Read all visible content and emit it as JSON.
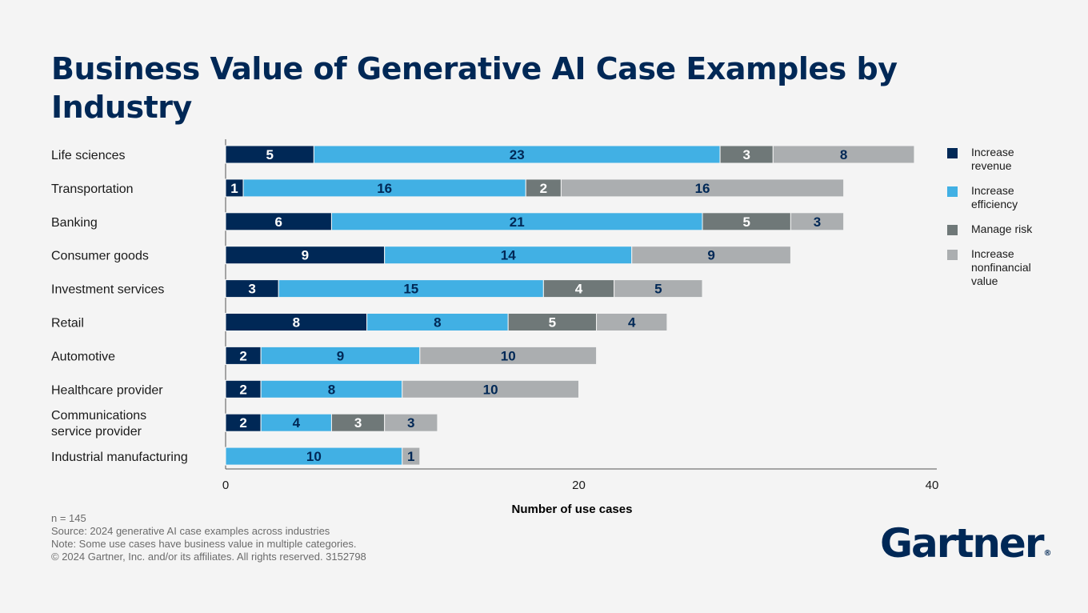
{
  "title": "Business Value of Generative AI Case Examples by Industry",
  "chart_data": {
    "type": "bar",
    "orientation": "horizontal",
    "stacked": true,
    "title": "Business Value of Generative AI Case Examples by Industry",
    "xlabel": "Number of use cases",
    "ylabel": "",
    "xlim": [
      0,
      40
    ],
    "xticks": [
      0,
      20,
      40
    ],
    "categories": [
      "Life sciences",
      "Transportation",
      "Banking",
      "Consumer goods",
      "Investment services",
      "Retail",
      "Automotive",
      "Healthcare provider",
      "Communications service provider",
      "Industrial manufacturing"
    ],
    "category_lines": [
      [
        "Life sciences"
      ],
      [
        "Transportation"
      ],
      [
        "Banking"
      ],
      [
        "Consumer goods"
      ],
      [
        "Investment services"
      ],
      [
        "Retail"
      ],
      [
        "Automotive"
      ],
      [
        "Healthcare provider"
      ],
      [
        "Communications",
        "service provider"
      ],
      [
        "Industrial manufacturing"
      ]
    ],
    "series": [
      {
        "name": "Increase revenue",
        "color": "#002856",
        "label_color": "#ffffff",
        "values": [
          5,
          1,
          6,
          9,
          3,
          8,
          2,
          2,
          2,
          0
        ]
      },
      {
        "name": "Increase efficiency",
        "color": "#41b0e4",
        "label_color": "#002856",
        "values": [
          23,
          16,
          21,
          14,
          15,
          8,
          9,
          8,
          4,
          10
        ]
      },
      {
        "name": "Manage risk",
        "color": "#6f7878",
        "label_color": "#ffffff",
        "values": [
          3,
          2,
          5,
          0,
          4,
          5,
          0,
          0,
          3,
          0
        ]
      },
      {
        "name": "Increase nonfinancial value",
        "color": "#abaeb0",
        "label_color": "#002856",
        "values": [
          8,
          16,
          3,
          9,
          5,
          4,
          10,
          10,
          3,
          1
        ]
      }
    ],
    "legend_position": "right",
    "grid": false
  },
  "legend": [
    {
      "lines": [
        "Increase",
        "revenue"
      ],
      "color": "#002856"
    },
    {
      "lines": [
        "Increase",
        "efficiency"
      ],
      "color": "#41b0e4"
    },
    {
      "lines": [
        "Manage risk"
      ],
      "color": "#6f7878"
    },
    {
      "lines": [
        "Increase",
        "nonfinancial",
        "value"
      ],
      "color": "#abaeb0"
    }
  ],
  "notes": {
    "n": "n = 145",
    "source": "Source: 2024 generative AI case examples across industries",
    "note": "Note: Some use cases have business value in multiple categories.",
    "copyright": "© 2024 Gartner, Inc. and/or its affiliates. All rights reserved. 3152798"
  },
  "logo": {
    "text": "Gartner",
    "mark": "®"
  }
}
